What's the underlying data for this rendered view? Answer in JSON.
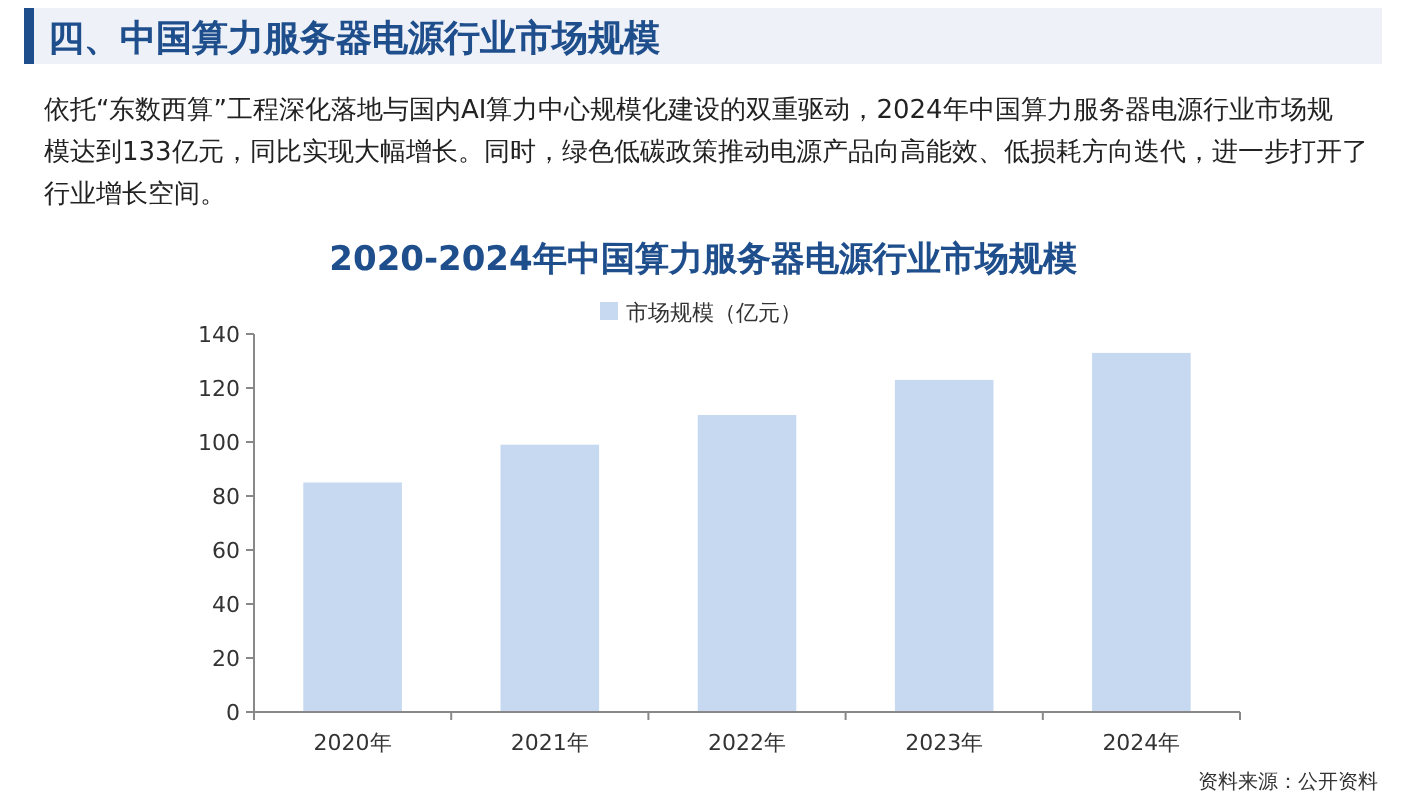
{
  "chart_data": {
    "type": "bar",
    "title": "2020-2024年中国算力服务器电源行业市场规模",
    "annotations": [
      "四、中国算力服务器电源行业市场规模",
      "依托“东数西算”工程深化落地与国内AI算力中心规模化建设的双重驱动，2024年中国算力服务器电源行业市场规模达到133亿元，同比实现大幅增长。同时，绿色低碳政策推动电源产品向高能效、低损耗方向迭代，进一步打开了行业增长空间。",
      "资料来源：公开资料"
    ],
    "categories": [
      "2020年",
      "2021年",
      "2022年",
      "2023年",
      "2024年"
    ],
    "series": [
      {
        "name": "市场规模（亿元）",
        "color": "#c6d9f1",
        "values": [
          85,
          99,
          110,
          123,
          133
        ]
      }
    ],
    "ylim": [
      0,
      140
    ],
    "yticks": [
      0,
      20,
      40,
      60,
      80,
      100,
      120,
      140
    ],
    "grid": false,
    "legend": "top"
  }
}
